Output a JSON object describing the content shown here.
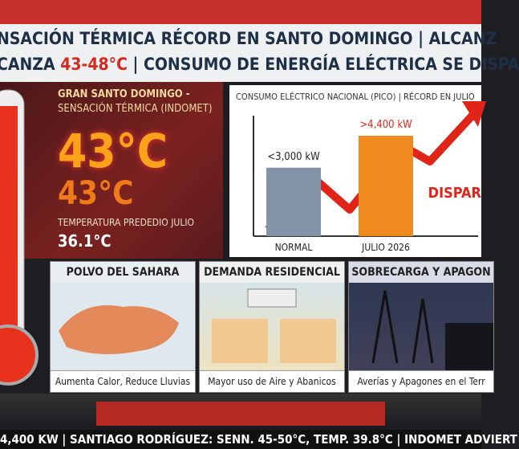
{
  "header": {
    "line1": "NSACIÓN TÉRMICA RÉCORD EN SANTO DOMINGO | ALCANZ",
    "line2": [
      "CANZA",
      "43-48°C",
      "| CONSUMO DE ENERGÍA ELÉCTRICA SE DISPA"
    ]
  },
  "heat_panel": {
    "title": "GRAN SANTO DOMINGO -",
    "subtitle": "SENSACIÓN TÉRMICA (INDOMET)",
    "big_value": "43°C",
    "second_value": "43°C",
    "avg_label": "TEMPERATURA PREDEDIO JULIO",
    "avg_value": "36.1°C"
  },
  "consumption_chart": {
    "type": "bar",
    "title": "CONSUMO ELÉCTRICO NACIONAL (PICO) | RÉCORD EN JULIO",
    "categories": [
      "NORMAL",
      "JULIO 2026"
    ],
    "values": [
      3000,
      4400
    ],
    "value_labels": [
      "<3,000 kW",
      ">4,400 kW"
    ],
    "colors": [
      "#8593a8",
      "#f08a1e"
    ],
    "annotation": "DISPAR"
  },
  "panels": [
    {
      "title": "POLVO DEL SAHARA",
      "caption": "Aumenta Calor, Reduce Lluvias"
    },
    {
      "title": "DEMANDA RESIDENCIAL",
      "caption": "Mayor uso de Aire y Abanicos"
    },
    {
      "title": "SOBRECARGA Y APAGON",
      "caption": "Averías y Apagones en el Terr"
    }
  ],
  "ticker": "4,400 KW | SANTIAGO RODRÍGUEZ: SENN. 45-50°C, TEMP. 39.8°C | INDOMET ADVIERT"
}
